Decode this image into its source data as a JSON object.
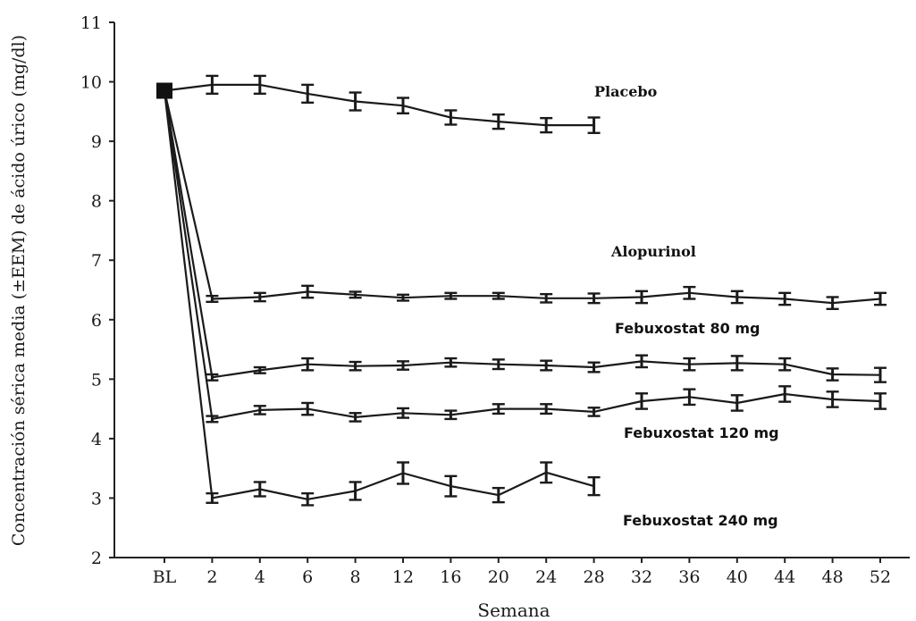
{
  "chart_data": {
    "type": "line",
    "xlabel": "Semana",
    "ylabel": "Concentración sérica media (±EEM) de ácido úrico (mg/dl)",
    "categories": [
      "BL",
      "2",
      "4",
      "6",
      "8",
      "12",
      "16",
      "20",
      "24",
      "28",
      "32",
      "36",
      "40",
      "44",
      "48",
      "52"
    ],
    "ylim": [
      2,
      11
    ],
    "yticks": [
      "2",
      "3",
      "4",
      "5",
      "6",
      "7",
      "8",
      "9",
      "10",
      "11"
    ],
    "error_bars": true,
    "series": [
      {
        "name": "Placebo",
        "values": [
          9.85,
          9.95,
          9.95,
          9.8,
          9.67,
          9.6,
          9.4,
          9.33,
          9.27,
          9.27,
          null,
          null,
          null,
          null,
          null,
          null
        ],
        "errors": [
          0.05,
          0.15,
          0.15,
          0.15,
          0.15,
          0.13,
          0.12,
          0.12,
          0.12,
          0.13,
          null,
          null,
          null,
          null,
          null,
          null
        ]
      },
      {
        "name": "Alopurinol",
        "values": [
          9.85,
          6.35,
          6.38,
          6.47,
          6.42,
          6.37,
          6.4,
          6.4,
          6.36,
          6.36,
          6.38,
          6.45,
          6.38,
          6.35,
          6.28,
          6.35
        ],
        "errors": [
          0.05,
          0.05,
          0.07,
          0.1,
          0.05,
          0.05,
          0.05,
          0.05,
          0.07,
          0.08,
          0.1,
          0.1,
          0.1,
          0.1,
          0.1,
          0.1
        ]
      },
      {
        "name": "Febuxostat 80 mg",
        "values": [
          9.85,
          5.03,
          5.15,
          5.25,
          5.22,
          5.23,
          5.28,
          5.25,
          5.23,
          5.2,
          5.3,
          5.25,
          5.27,
          5.25,
          5.08,
          5.07
        ],
        "errors": [
          0.05,
          0.05,
          0.05,
          0.1,
          0.07,
          0.07,
          0.07,
          0.08,
          0.08,
          0.08,
          0.1,
          0.1,
          0.12,
          0.1,
          0.1,
          0.12
        ]
      },
      {
        "name": "Febuxostat 120 mg",
        "values": [
          9.85,
          4.33,
          4.48,
          4.5,
          4.36,
          4.43,
          4.4,
          4.5,
          4.5,
          4.45,
          4.63,
          4.7,
          4.6,
          4.75,
          4.66,
          4.63
        ],
        "errors": [
          0.05,
          0.05,
          0.07,
          0.1,
          0.07,
          0.08,
          0.07,
          0.08,
          0.08,
          0.07,
          0.13,
          0.13,
          0.13,
          0.13,
          0.13,
          0.13
        ]
      },
      {
        "name": "Febuxostat 240 mg",
        "values": [
          9.85,
          3.0,
          3.15,
          2.98,
          3.12,
          3.42,
          3.2,
          3.05,
          3.43,
          3.2,
          null,
          null,
          null,
          null,
          null,
          null
        ],
        "errors": [
          0.05,
          0.08,
          0.12,
          0.1,
          0.15,
          0.18,
          0.17,
          0.12,
          0.17,
          0.15,
          null,
          null,
          null,
          null,
          null,
          null
        ]
      }
    ]
  }
}
